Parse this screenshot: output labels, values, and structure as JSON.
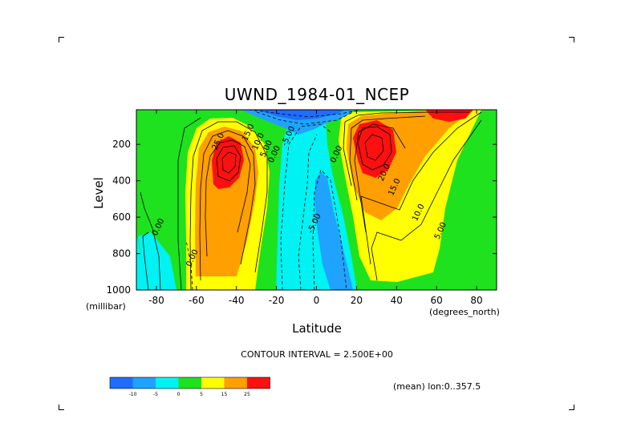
{
  "chart_data": {
    "type": "heatmap",
    "title": "UWND_1984-01_NCEP",
    "xlabel": "Latitude",
    "ylabel": "Level",
    "x_unit": "(degrees_north)",
    "y_unit": "(millibar)",
    "xlim": [
      -90,
      90
    ],
    "ylim": [
      1000,
      10
    ],
    "x_ticks": [
      -80,
      -60,
      -40,
      -20,
      0,
      20,
      40,
      60,
      80
    ],
    "y_ticks": [
      200,
      400,
      600,
      800,
      1000
    ],
    "footer": "CONTOUR INTERVAL = 2.500E+00",
    "region": "(mean) lon:0..357.5",
    "colorbar": {
      "levels": [
        "-10",
        "-5",
        "0",
        "5",
        "15",
        "25"
      ],
      "colors": [
        "#1f6cff",
        "#1fa3ff",
        "#00f2f2",
        "#1ee21e",
        "#ffff00",
        "#ff9f00",
        "#ff1010"
      ]
    },
    "contour_labels": [
      {
        "text": "25.0",
        "lat": -48,
        "lev": 190
      },
      {
        "text": "15.0",
        "lat": -33,
        "lev": 140
      },
      {
        "text": "10.0",
        "lat": -28,
        "lev": 190
      },
      {
        "text": "5.00",
        "lat": -24,
        "lev": 230
      },
      {
        "text": "0.00",
        "lat": -20,
        "lev": 260
      },
      {
        "text": "-5.00",
        "lat": -13,
        "lev": 160
      },
      {
        "text": "0.00",
        "lat": 11,
        "lev": 260
      },
      {
        "text": "-5.00",
        "lat": 0,
        "lev": 640
      },
      {
        "text": "20.0",
        "lat": 35,
        "lev": 360
      },
      {
        "text": "15.0",
        "lat": 40,
        "lev": 440
      },
      {
        "text": "10.0",
        "lat": 52,
        "lev": 580
      },
      {
        "text": "5.00",
        "lat": 63,
        "lev": 680
      },
      {
        "text": "0.00",
        "lat": -78,
        "lev": 660
      },
      {
        "text": "0.00",
        "lat": -61,
        "lev": 830
      }
    ]
  }
}
